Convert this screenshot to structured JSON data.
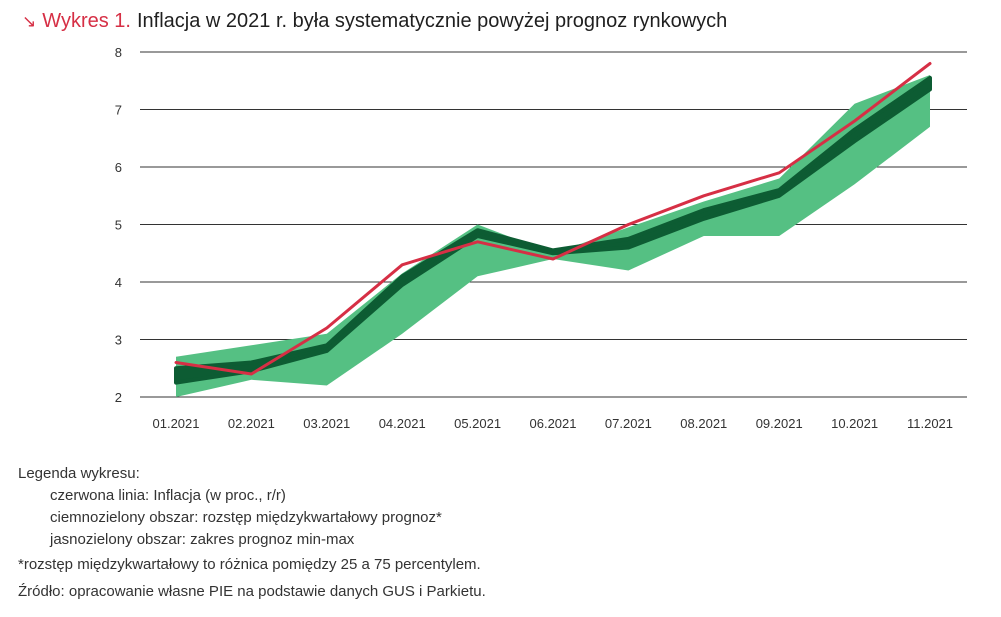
{
  "header": {
    "prefix": "Wykres 1.",
    "title": "Inflacja w 2021 r. była systematycznie powyżej prognoz rynkowych",
    "arrow_icon": "south-east-arrow-icon"
  },
  "colors": {
    "line": "#d62f45",
    "iqr": "#0d5c33",
    "range": "#55c083",
    "grid": "#333333",
    "accent": "#d62f45"
  },
  "chart_data": {
    "type": "line",
    "title": "Inflacja w 2021 r. była systematycznie powyżej prognoz rynkowych",
    "categories": [
      "01.2021",
      "02.2021",
      "03.2021",
      "04.2021",
      "05.2021",
      "06.2021",
      "07.2021",
      "08.2021",
      "09.2021",
      "10.2021",
      "11.2021"
    ],
    "ylim": [
      2,
      8
    ],
    "yticks": [
      2,
      3,
      4,
      5,
      6,
      7,
      8
    ],
    "grid": true,
    "series": [
      {
        "name": "Inflacja (w proc., r/r)",
        "kind": "line",
        "values": [
          2.6,
          2.4,
          3.2,
          4.3,
          4.7,
          4.4,
          5.0,
          5.5,
          5.9,
          6.8,
          7.8
        ]
      },
      {
        "name": "rozstęp międzykwartałowy prognoz",
        "kind": "band",
        "low": [
          2.25,
          2.45,
          2.8,
          3.95,
          4.8,
          4.5,
          4.6,
          5.1,
          5.5,
          6.45,
          7.35
        ],
        "high": [
          2.5,
          2.6,
          2.9,
          4.1,
          4.9,
          4.55,
          4.75,
          5.25,
          5.6,
          6.65,
          7.55
        ]
      },
      {
        "name": "zakres prognoz min-max",
        "kind": "band",
        "low": [
          2.0,
          2.3,
          2.2,
          3.1,
          4.1,
          4.4,
          4.2,
          4.8,
          4.8,
          5.7,
          6.7
        ],
        "high": [
          2.7,
          2.9,
          3.1,
          4.15,
          5.0,
          4.5,
          4.95,
          5.4,
          5.8,
          7.1,
          7.6
        ]
      }
    ]
  },
  "legend": {
    "heading": "Legenda wykresu:",
    "items": [
      "czerwona linia: Inflacja (w proc., r/r)",
      "ciemnozielony obszar: rozstęp międzykwartałowy prognoz*",
      "jasnozielony obszar: zakres prognoz min-max"
    ],
    "footnote": "*rozstęp międzykwartałowy to różnica pomiędzy 25 a 75 percentylem.",
    "source": "Źródło: opracowanie własne PIE na podstawie danych GUS i Parkietu."
  }
}
